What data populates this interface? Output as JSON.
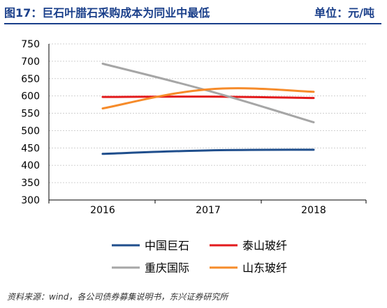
{
  "figure": {
    "title": "图17：巨石叶腊石采购成本为同业中最低",
    "unit_label": "单位：元/吨",
    "source": "资料来源：wind，各公司债券募集说明书，东兴证券研究所"
  },
  "colors": {
    "title": "#1a3f8a",
    "grid": "#d0d0d0",
    "axis": "#000000"
  },
  "chart_data": {
    "type": "line",
    "x": [
      "2016",
      "2017",
      "2018"
    ],
    "ylim": [
      300,
      750
    ],
    "yticks": [
      "300",
      "350",
      "400",
      "450",
      "500",
      "550",
      "600",
      "650",
      "700",
      "750"
    ],
    "grid": true,
    "legend_position": "bottom",
    "series": [
      {
        "name": "中国巨石",
        "values": [
          433,
          443,
          445
        ],
        "color": "#1f4e8c"
      },
      {
        "name": "泰山玻纤",
        "values": [
          597,
          598,
          594
        ],
        "color": "#e31a1c"
      },
      {
        "name": "重庆国际",
        "values": [
          693,
          615,
          524
        ],
        "color": "#a6a6a6"
      },
      {
        "name": "山东玻纤",
        "values": [
          564,
          619,
          612
        ],
        "color": "#f68b2a"
      }
    ]
  }
}
